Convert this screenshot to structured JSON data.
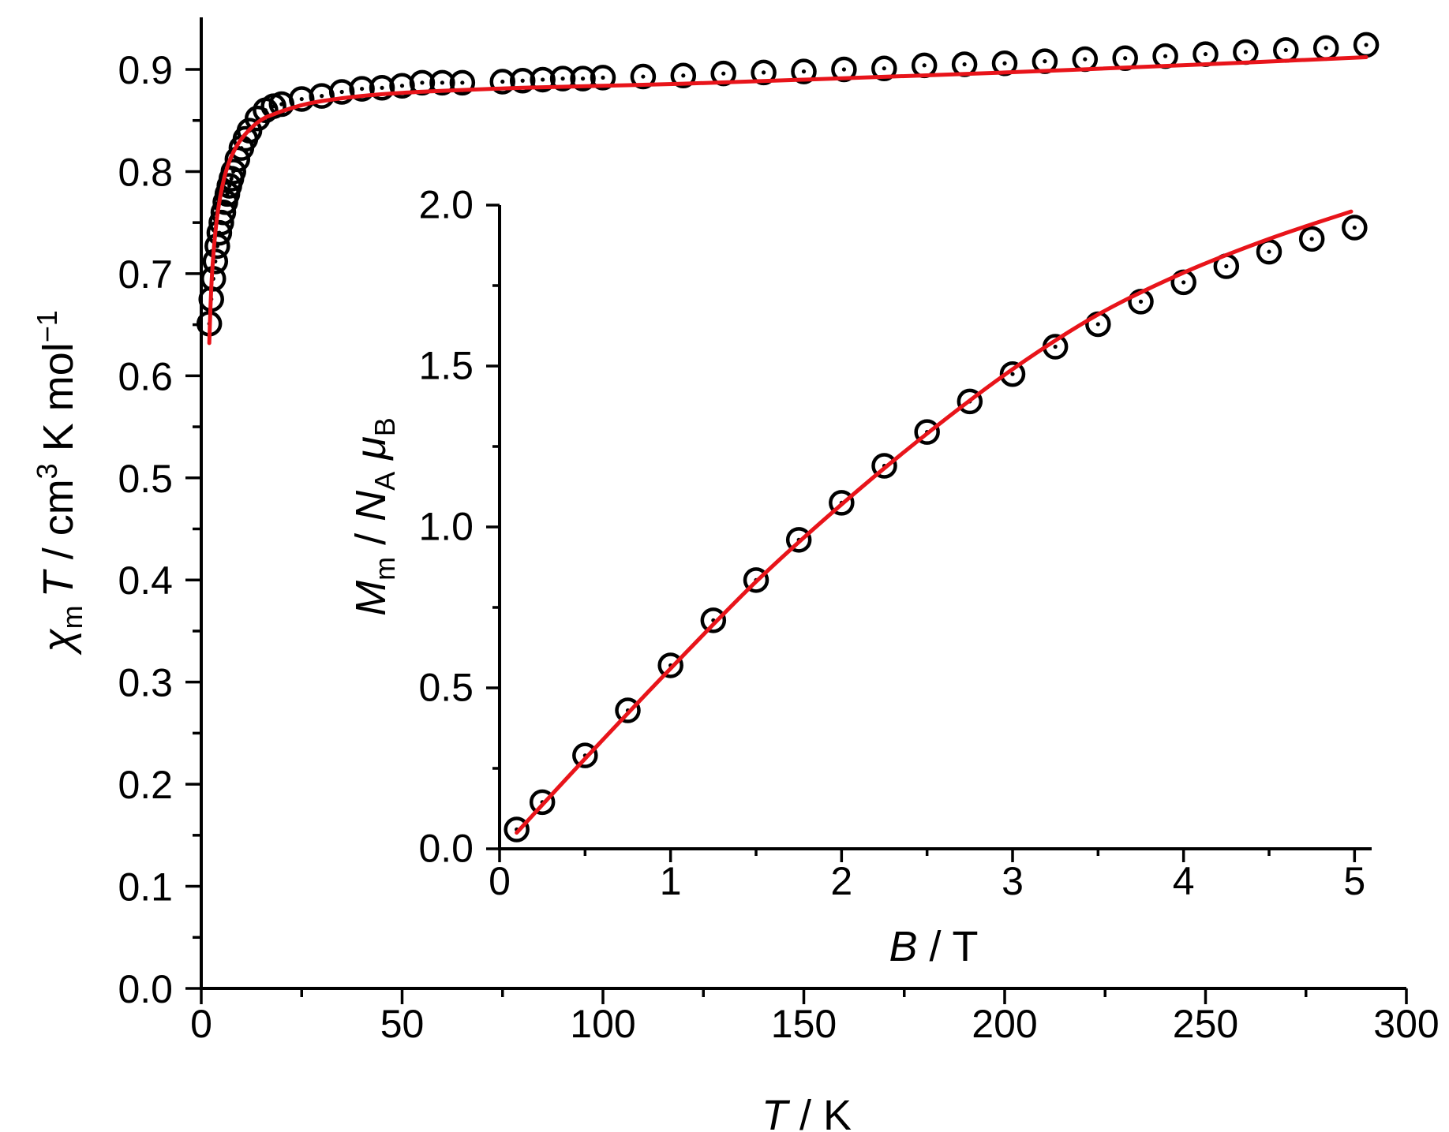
{
  "chart_data": [
    {
      "id": "main",
      "type": "scatter",
      "xlabel": {
        "main": "T",
        "rest": " / K"
      },
      "ylabel": {
        "chi": "χ",
        "chi_sub": "m",
        "mid": "T",
        "rest1": " / cm",
        "sup3": "3",
        "rest2": " K mol",
        "sup_neg": "−1"
      },
      "xlim": [
        0,
        300
      ],
      "ylim": [
        0.0,
        0.95
      ],
      "xticks": [
        0,
        50,
        100,
        150,
        200,
        250,
        300
      ],
      "xtick_labels": [
        "0",
        "50",
        "100",
        "150",
        "200",
        "250",
        "300"
      ],
      "xminor": [
        25,
        75,
        125,
        175,
        225,
        275
      ],
      "yticks": [
        0.0,
        0.1,
        0.2,
        0.3,
        0.4,
        0.5,
        0.6,
        0.7,
        0.8,
        0.9
      ],
      "ytick_labels": [
        "0.0",
        "0.1",
        "0.2",
        "0.3",
        "0.4",
        "0.5",
        "0.6",
        "0.7",
        "0.8",
        "0.9"
      ],
      "yminor": [
        0.05,
        0.15,
        0.25,
        0.35,
        0.45,
        0.55,
        0.65,
        0.75,
        0.85
      ],
      "series": [
        {
          "name": "experimental",
          "style": "open-circle-dot",
          "x": [
            2,
            2.5,
            3,
            3.5,
            4,
            4.5,
            5,
            5.5,
            6,
            6.5,
            7,
            7.5,
            8,
            9,
            10,
            11,
            12,
            14,
            16,
            18,
            20,
            25,
            30,
            35,
            40,
            45,
            50,
            55,
            60,
            65,
            75,
            80,
            85,
            90,
            95,
            100,
            110,
            120,
            130,
            140,
            150,
            160,
            170,
            180,
            190,
            200,
            210,
            220,
            230,
            240,
            250,
            260,
            270,
            280,
            290
          ],
          "y": [
            0.651,
            0.675,
            0.695,
            0.712,
            0.727,
            0.74,
            0.75,
            0.76,
            0.77,
            0.778,
            0.786,
            0.793,
            0.8,
            0.812,
            0.823,
            0.832,
            0.84,
            0.852,
            0.86,
            0.864,
            0.866,
            0.871,
            0.874,
            0.878,
            0.881,
            0.882,
            0.884,
            0.887,
            0.887,
            0.887,
            0.888,
            0.889,
            0.89,
            0.891,
            0.891,
            0.892,
            0.893,
            0.894,
            0.896,
            0.897,
            0.898,
            0.9,
            0.901,
            0.904,
            0.905,
            0.906,
            0.908,
            0.91,
            0.911,
            0.913,
            0.915,
            0.917,
            0.919,
            0.921,
            0.924
          ]
        },
        {
          "name": "fit",
          "style": "red-line",
          "color": "#e8141a",
          "x": [
            2,
            2.3,
            2.6,
            3,
            3.5,
            4,
            4.5,
            5,
            5.5,
            6,
            7,
            8,
            9,
            10,
            12,
            14,
            16,
            18,
            20,
            25,
            30,
            40,
            50,
            60,
            80,
            100,
            120,
            150,
            200,
            250,
            290
          ],
          "y": [
            0.632,
            0.668,
            0.694,
            0.718,
            0.74,
            0.757,
            0.77,
            0.781,
            0.79,
            0.798,
            0.81,
            0.819,
            0.826,
            0.832,
            0.841,
            0.848,
            0.853,
            0.856,
            0.859,
            0.865,
            0.869,
            0.874,
            0.877,
            0.879,
            0.882,
            0.884,
            0.886,
            0.89,
            0.897,
            0.905,
            0.912
          ]
        }
      ]
    },
    {
      "id": "inset",
      "type": "scatter",
      "xlabel": {
        "main": "B",
        "rest": " / T"
      },
      "ylabel": {
        "M": "M",
        "M_sub": "m",
        "mid": " / ",
        "N": "N",
        "N_sub": "A",
        "mu": " μ",
        "mu_sub": "B"
      },
      "xlim": [
        0,
        5.1
      ],
      "ylim": [
        0.0,
        2.0
      ],
      "xticks": [
        0,
        1,
        2,
        3,
        4,
        5
      ],
      "xtick_labels": [
        "0",
        "1",
        "2",
        "3",
        "4",
        "5"
      ],
      "xminor": [
        0.5,
        1.5,
        2.5,
        3.5,
        4.5
      ],
      "yticks": [
        0.0,
        0.5,
        1.0,
        1.5,
        2.0
      ],
      "ytick_labels": [
        "0.0",
        "0.5",
        "1.0",
        "1.5",
        "2.0"
      ],
      "yminor": [
        0.25,
        0.75,
        1.25,
        1.75
      ],
      "series": [
        {
          "name": "experimental",
          "style": "open-circle-dot",
          "x": [
            0.1,
            0.25,
            0.5,
            0.75,
            1.0,
            1.25,
            1.5,
            1.75,
            2.0,
            2.25,
            2.5,
            2.75,
            3.0,
            3.25,
            3.5,
            3.75,
            4.0,
            4.25,
            4.5,
            4.75,
            5.0
          ],
          "y": [
            0.06,
            0.145,
            0.29,
            0.43,
            0.57,
            0.71,
            0.835,
            0.96,
            1.075,
            1.19,
            1.295,
            1.39,
            1.475,
            1.56,
            1.63,
            1.7,
            1.76,
            1.81,
            1.855,
            1.895,
            1.93
          ]
        },
        {
          "name": "fit",
          "style": "red-line",
          "color": "#e8141a",
          "x": [
            0.1,
            0.5,
            1.0,
            1.5,
            2.0,
            2.5,
            3.0,
            3.5,
            4.0,
            4.5,
            4.98
          ],
          "y": [
            0.05,
            0.28,
            0.56,
            0.83,
            1.07,
            1.29,
            1.49,
            1.66,
            1.79,
            1.895,
            1.98
          ]
        }
      ]
    }
  ]
}
